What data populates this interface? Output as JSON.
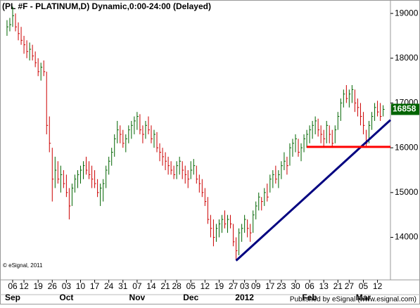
{
  "chart_data": {
    "type": "ohlc",
    "title": "(PL #F - PLATINUM,D) Dynamic,0:00-24:00 (Delayed)",
    "copyright": "© eSignal, 2011",
    "footer": "Published by eSignal (www.esignal.com)",
    "categories": [
      null,
      null,
      "06",
      null,
      null,
      null,
      "12",
      null,
      null,
      null,
      null,
      "19",
      null,
      null,
      null,
      null,
      "26",
      null,
      null,
      null,
      null,
      "03",
      null,
      null,
      null,
      null,
      "10",
      null,
      null,
      null,
      null,
      "17",
      null,
      null,
      null,
      null,
      "24",
      null,
      null,
      null,
      null,
      "31",
      null,
      null,
      null,
      null,
      "07",
      null,
      null,
      null,
      null,
      "14",
      null,
      null,
      null,
      null,
      "21",
      null,
      null,
      null,
      "28",
      null,
      null,
      null,
      null,
      "05",
      null,
      null,
      null,
      null,
      "12",
      null,
      null,
      null,
      null,
      "19",
      null,
      null,
      null,
      null,
      "27",
      null,
      null,
      null,
      "03",
      null,
      null,
      null,
      "09",
      null,
      null,
      null,
      null,
      "17",
      null,
      null,
      null,
      "23",
      null,
      null,
      null,
      null,
      "30",
      null,
      null,
      null,
      null,
      "06",
      null,
      null,
      null,
      null,
      "13",
      null,
      null,
      null,
      null,
      "21",
      null,
      null,
      null,
      "27",
      null,
      null,
      null,
      null,
      "05",
      null,
      null,
      null,
      null,
      "12",
      null,
      null
    ],
    "month_labels": [
      null,
      null,
      "Sep",
      null,
      null,
      null,
      null,
      null,
      null,
      null,
      null,
      null,
      null,
      null,
      null,
      null,
      null,
      null,
      null,
      null,
      null,
      "Oct",
      null,
      null,
      null,
      null,
      null,
      null,
      null,
      null,
      null,
      null,
      null,
      null,
      null,
      null,
      null,
      null,
      null,
      null,
      null,
      null,
      null,
      null,
      null,
      null,
      "Nov",
      null,
      null,
      null,
      null,
      null,
      null,
      null,
      null,
      null,
      null,
      null,
      null,
      null,
      null,
      null,
      null,
      null,
      null,
      "Dec",
      null,
      null,
      null,
      null,
      null,
      null,
      null,
      null,
      null,
      null,
      null,
      null,
      null,
      null,
      null,
      null,
      null,
      null,
      "2012",
      null,
      null,
      null,
      null,
      null,
      null,
      null,
      null,
      null,
      null,
      null,
      null,
      null,
      null,
      null,
      null,
      null,
      null,
      null,
      null,
      null,
      null,
      "Feb",
      null,
      null,
      null,
      null,
      null,
      null,
      null,
      null,
      null,
      null,
      null,
      null,
      null,
      null,
      null,
      null,
      null,
      null,
      "Mar",
      null,
      null,
      null,
      null,
      null,
      null,
      null
    ],
    "high": [
      18850,
      18900,
      19150,
      19000,
      18800,
      18700,
      18500,
      18400,
      18350,
      18300,
      18150,
      18000,
      17900,
      17950,
      17700,
      16700,
      16000,
      15800,
      15700,
      15600,
      15500,
      15400,
      15100,
      15200,
      15400,
      15500,
      15600,
      15700,
      15800,
      15700,
      15600,
      15500,
      15300,
      15200,
      15300,
      15600,
      15800,
      16000,
      16300,
      16600,
      16500,
      16400,
      16300,
      16500,
      16600,
      16700,
      16800,
      16750,
      16500,
      16600,
      16700,
      16500,
      16400,
      16350,
      16100,
      16000,
      15900,
      15800,
      15700,
      15600,
      15700,
      15800,
      15700,
      15600,
      15500,
      15700,
      15750,
      15600,
      15400,
      15300,
      15100,
      14900,
      14500,
      14400,
      14300,
      14400,
      14500,
      14600,
      14500,
      14500,
      14300,
      14000,
      14200,
      14300,
      14500,
      14400,
      14300,
      14600,
      14800,
      15000,
      14900,
      15100,
      15200,
      15400,
      15500,
      15600,
      15500,
      15700,
      15900,
      15800,
      16100,
      16200,
      16300,
      16200,
      16100,
      16300,
      16400,
      16500,
      16600,
      16700,
      16650,
      16500,
      16400,
      16600,
      16500,
      16400,
      16500,
      16800,
      17100,
      17300,
      17400,
      17300,
      17400,
      17300,
      17100,
      17000,
      16800,
      16400,
      16600,
      16800,
      17000,
      17050,
      17000,
      16950
    ],
    "low": [
      18500,
      18600,
      18700,
      18600,
      18400,
      18300,
      18100,
      18000,
      17950,
      17950,
      17800,
      17600,
      17500,
      17600,
      16300,
      15900,
      14800,
      15100,
      15200,
      15000,
      15100,
      14900,
      14400,
      14700,
      15000,
      15100,
      15200,
      15300,
      15400,
      15300,
      15100,
      15100,
      14900,
      14700,
      14800,
      15100,
      15400,
      15600,
      15800,
      16100,
      16100,
      16000,
      15900,
      16100,
      16200,
      16300,
      16400,
      16300,
      16100,
      16200,
      16300,
      16100,
      16000,
      15900,
      15700,
      15600,
      15500,
      15400,
      15400,
      15300,
      15300,
      15400,
      15300,
      15200,
      15100,
      15300,
      15400,
      15200,
      15000,
      14900,
      14700,
      14300,
      14000,
      13800,
      13900,
      14000,
      14100,
      14200,
      14100,
      14200,
      13800,
      13500,
      13600,
      13900,
      14100,
      14000,
      13900,
      14100,
      14400,
      14600,
      14600,
      14700,
      14800,
      15000,
      15100,
      15200,
      15100,
      15300,
      15500,
      15400,
      15600,
      15800,
      15900,
      15800,
      15700,
      15900,
      16000,
      16100,
      16200,
      16300,
      16250,
      16100,
      16000,
      16100,
      16100,
      16000,
      16100,
      16400,
      16600,
      16900,
      17000,
      16900,
      17000,
      16800,
      16700,
      16500,
      16300,
      16000,
      16100,
      16400,
      16600,
      16700,
      16600,
      16700
    ],
    "close": [
      18700,
      18750,
      18950,
      18700,
      18550,
      18400,
      18300,
      18150,
      18200,
      18050,
      17900,
      17700,
      17800,
      17700,
      16500,
      16100,
      15300,
      15500,
      15300,
      15400,
      15200,
      15000,
      14700,
      15100,
      15300,
      15400,
      15500,
      15600,
      15500,
      15400,
      15300,
      15200,
      15000,
      15100,
      15200,
      15500,
      15700,
      15900,
      16200,
      16400,
      16300,
      16100,
      16200,
      16400,
      16500,
      16600,
      16700,
      16400,
      16300,
      16500,
      16400,
      16200,
      16300,
      16000,
      15900,
      15800,
      15700,
      15600,
      15500,
      15400,
      15600,
      15700,
      15500,
      15400,
      15300,
      15500,
      15600,
      15300,
      15200,
      15000,
      14800,
      14400,
      14200,
      14000,
      14200,
      14300,
      14400,
      14300,
      14400,
      14300,
      13900,
      13700,
      14100,
      14200,
      14400,
      14200,
      14100,
      14500,
      14700,
      14900,
      14800,
      15000,
      14900,
      15300,
      15400,
      15300,
      15400,
      15600,
      15700,
      15600,
      16000,
      16100,
      16200,
      15900,
      16000,
      16200,
      16300,
      16400,
      16500,
      16600,
      16400,
      16300,
      16200,
      16500,
      16300,
      16100,
      16400,
      16700,
      17000,
      17200,
      17100,
      17200,
      17300,
      17000,
      16900,
      16700,
      16500,
      16100,
      16500,
      16700,
      16900,
      16800,
      16700,
      16858
    ],
    "up_color": "#006400",
    "down_color": "#cc0000",
    "last_color": "#006400",
    "ylim": [
      13050,
      19300
    ],
    "yticks": [
      14000,
      15000,
      16000,
      17000,
      18000,
      19000
    ],
    "trendlines": [
      {
        "color": "#000080",
        "start_bar": 81,
        "start": 13480,
        "end": 16620
      },
      {
        "color": "#ff0000",
        "start_bar": 106,
        "start": 16020,
        "end": 16020
      }
    ]
  }
}
